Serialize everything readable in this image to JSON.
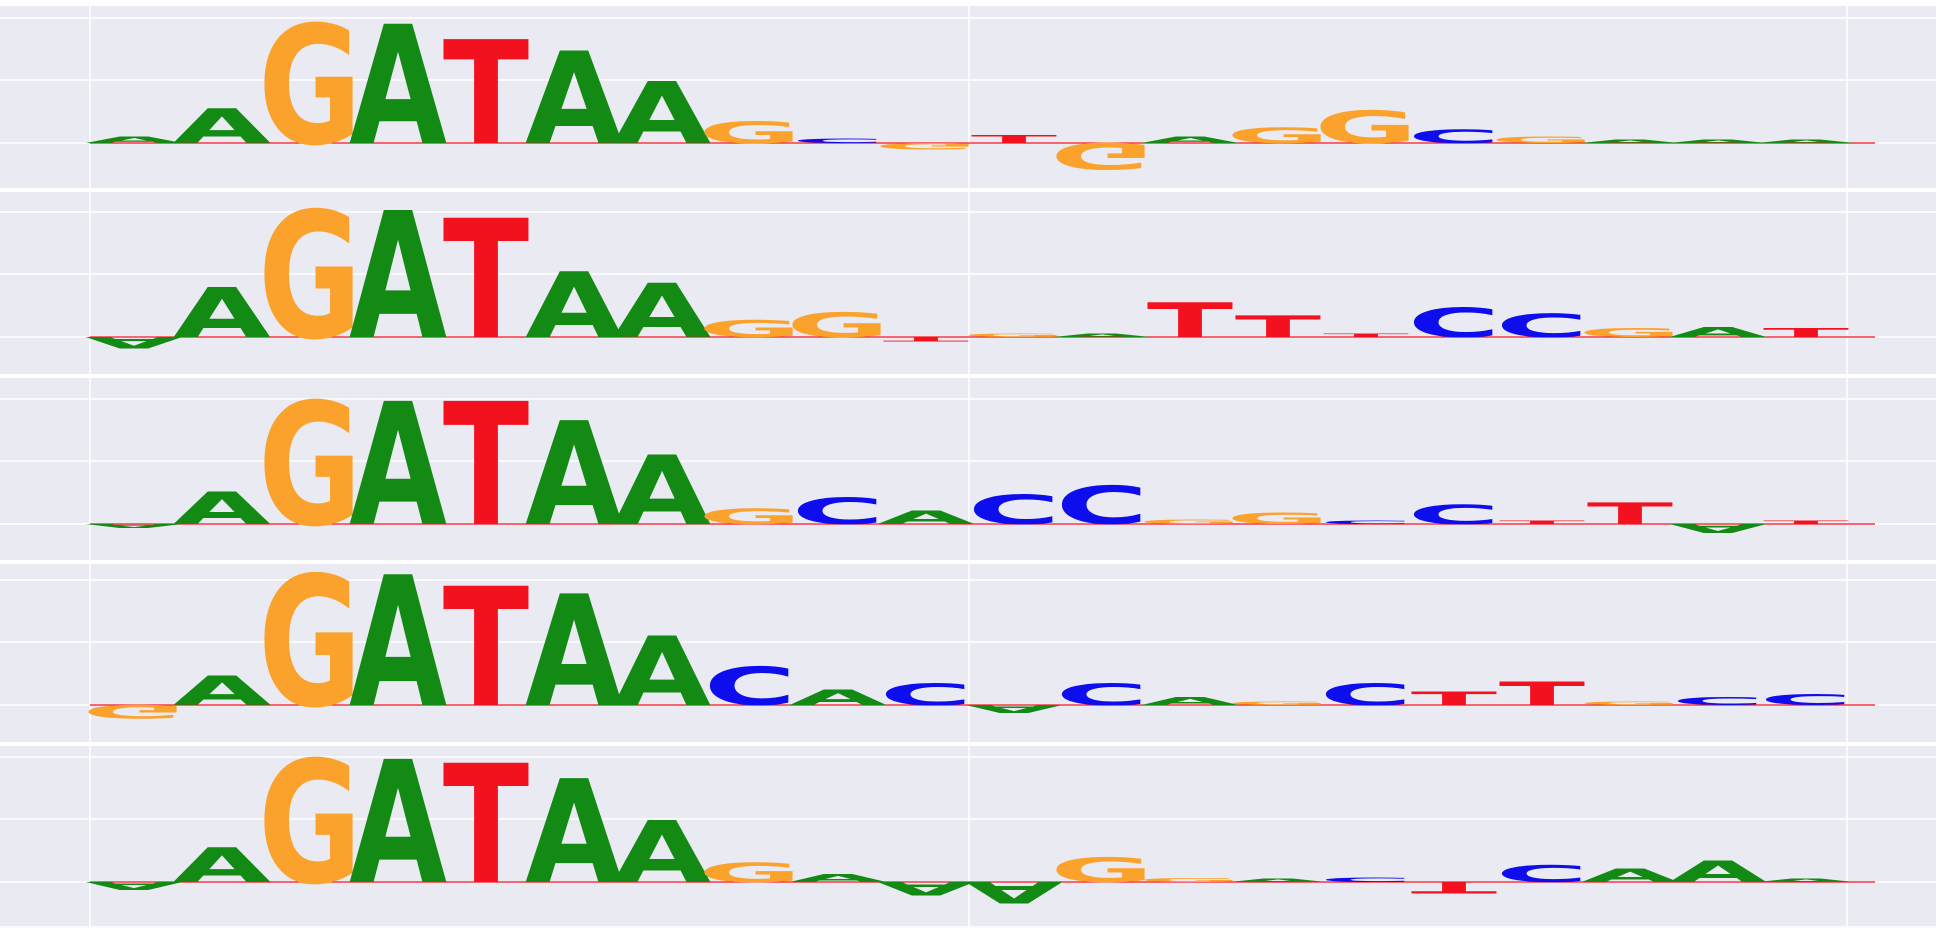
{
  "colors": {
    "background": "#ffffff",
    "panel": "#eaeaf2",
    "grid": "#ffffff",
    "A": "#138a13",
    "C": "#0d0dee",
    "G": "#fba22d",
    "T": "#f4111f"
  },
  "chart_data": {
    "type": "sequence-logo",
    "alphabet": [
      "A",
      "C",
      "G",
      "T"
    ],
    "grid": true,
    "xlabel": "",
    "ylabel": "",
    "positions": 20,
    "logos": [
      {
        "heights": [
          {
            "A": 0.08
          },
          {
            "A": 0.45
          },
          {
            "G": 1.55
          },
          {
            "A": 1.55
          },
          {
            "T": 1.35
          },
          {
            "A": 1.2
          },
          {
            "A": 0.8
          },
          {
            "G": 0.28
          },
          {
            "C": 0.06
          },
          {
            "G": -0.08
          },
          {
            "T": 0.1
          },
          {
            "G": -0.35
          },
          {
            "A": 0.08
          },
          {
            "G": 0.2
          },
          {
            "G": 0.42
          },
          {
            "C": 0.18
          },
          {
            "G": 0.08
          },
          {
            "A": 0.03
          },
          {
            "A": 0.03
          },
          {
            "A": 0.03
          }
        ]
      },
      {
        "heights": [
          {
            "A": -0.15
          },
          {
            "A": 0.65
          },
          {
            "G": 1.65
          },
          {
            "A": 1.65
          },
          {
            "T": 1.55
          },
          {
            "A": 0.85
          },
          {
            "A": 0.7
          },
          {
            "G": 0.22
          },
          {
            "G": 0.32
          },
          {
            "T": -0.06
          },
          {
            "G": 0.04
          },
          {
            "A": 0.04
          },
          {
            "T": 0.45
          },
          {
            "T": 0.28
          },
          {
            "T": 0.02
          },
          {
            "C": 0.38
          },
          {
            "C": 0.3
          },
          {
            "G": 0.12
          },
          {
            "A": 0.13
          },
          {
            "T": 0.12
          }
        ]
      },
      {
        "heights": [
          {
            "A": -0.05
          },
          {
            "A": 0.42
          },
          {
            "G": 1.6
          },
          {
            "A": 1.6
          },
          {
            "T": 1.6
          },
          {
            "A": 1.35
          },
          {
            "A": 0.9
          },
          {
            "G": 0.2
          },
          {
            "C": 0.35
          },
          {
            "A": 0.18
          },
          {
            "C": 0.38
          },
          {
            "C": 0.5
          },
          {
            "G": 0.06
          },
          {
            "G": 0.15
          },
          {
            "C": 0.03
          },
          {
            "C": 0.25
          },
          {
            "T": 0.02
          },
          {
            "T": 0.28
          },
          {
            "A": -0.12
          },
          {
            "T": 0.02
          }
        ]
      },
      {
        "heights": [
          {
            "G": -0.18
          },
          {
            "A": 0.38
          },
          {
            "G": 1.7
          },
          {
            "A": 1.7
          },
          {
            "T": 1.55
          },
          {
            "A": 1.45
          },
          {
            "A": 0.9
          },
          {
            "C": 0.5
          },
          {
            "A": 0.2
          },
          {
            "C": 0.28
          },
          {
            "A": -0.1
          },
          {
            "C": 0.28
          },
          {
            "A": 0.1
          },
          {
            "G": 0.02
          },
          {
            "C": 0.28
          },
          {
            "T": 0.18
          },
          {
            "T": 0.3
          },
          {
            "G": 0.02
          },
          {
            "C": 0.1
          },
          {
            "C": 0.14
          }
        ]
      },
      {
        "heights": [
          {
            "A": -0.1
          },
          {
            "A": 0.45
          },
          {
            "G": 1.6
          },
          {
            "A": 1.6
          },
          {
            "T": 1.55
          },
          {
            "A": 1.35
          },
          {
            "A": 0.8
          },
          {
            "G": 0.25
          },
          {
            "A": 0.1
          },
          {
            "A": -0.18
          },
          {
            "A": -0.28
          },
          {
            "G": 0.32
          },
          {
            "G": 0.05
          },
          {
            "A": 0.03
          },
          {
            "C": 0.06
          },
          {
            "T": -0.15
          },
          {
            "C": 0.22
          },
          {
            "A": 0.18
          },
          {
            "A": 0.28
          },
          {
            "A": 0.03
          }
        ]
      }
    ]
  }
}
